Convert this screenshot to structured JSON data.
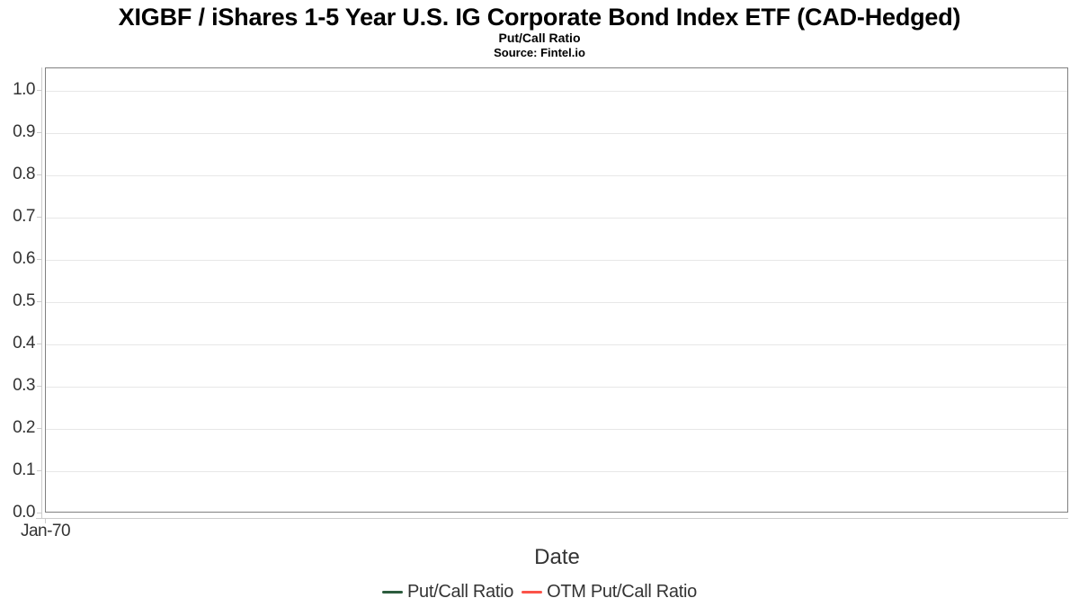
{
  "chart_data": {
    "type": "line",
    "title": "XIGBF / iShares 1-5 Year U.S. IG Corporate Bond Index ETF (CAD-Hedged)",
    "subtitle": "Put/Call Ratio",
    "source": "Source: Fintel.io",
    "xlabel": "Date",
    "ylabel": "",
    "ylim": [
      0.0,
      1.05
    ],
    "yticks": [
      "0.0",
      "0.1",
      "0.2",
      "0.3",
      "0.4",
      "0.5",
      "0.6",
      "0.7",
      "0.8",
      "0.9",
      "1.0"
    ],
    "xticks": [
      "Jan-70"
    ],
    "grid": true,
    "legend_position": "bottom-center",
    "plot_border_color": "#808080",
    "gridline_color": "#e7e7e7",
    "axis_line_color": "#cccccc",
    "text_color": "#333333",
    "series": [
      {
        "name": "Put/Call Ratio",
        "color": "#2c5c3e",
        "x": [],
        "values": []
      },
      {
        "name": "OTM Put/Call Ratio",
        "color": "#fb5349",
        "x": [],
        "values": []
      }
    ]
  }
}
